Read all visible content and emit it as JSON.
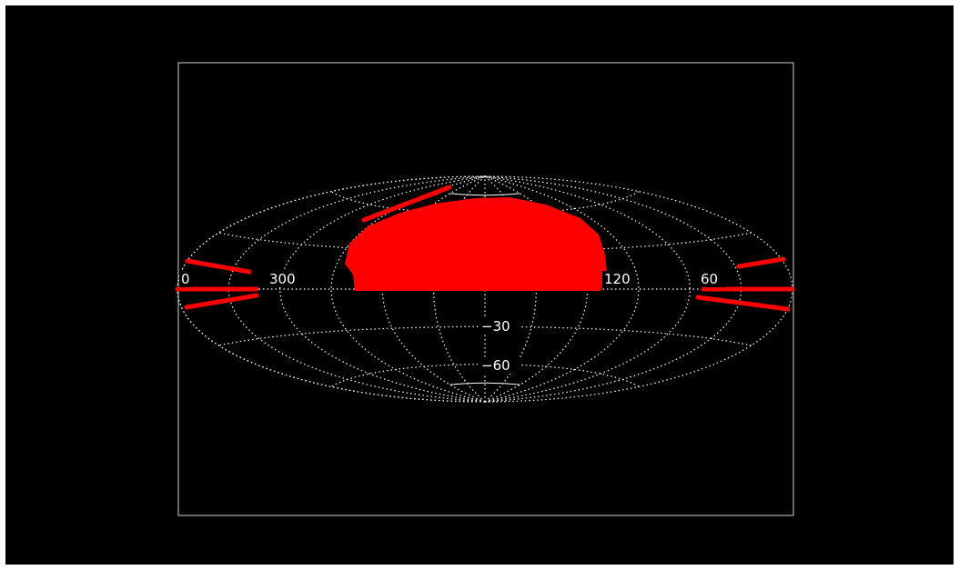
{
  "map": {
    "projection": "aitoff",
    "background_color": "#000000",
    "grid_color": "#ffffff",
    "fill_color": "#ff0000",
    "grid": true,
    "lat_lines_deg": [
      -60,
      -30,
      0,
      30,
      60
    ],
    "lon_lines_deg": [
      0,
      30,
      60,
      90,
      120,
      150,
      180,
      210,
      240,
      270,
      300,
      330
    ],
    "labels": {
      "lon_left_edge": "0",
      "lon_300": "300",
      "lon_120": "120",
      "lon_60": "60",
      "lat_neg30": "−30",
      "lat_neg60": "−60"
    }
  }
}
